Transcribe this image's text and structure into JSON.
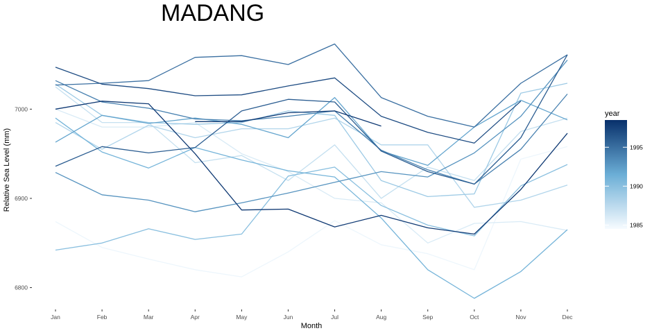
{
  "chart_data": {
    "type": "line",
    "title": "MADANG",
    "xlabel": "Month",
    "ylabel": "Relative Sea Level (mm)",
    "categories": [
      "Jan",
      "Feb",
      "Mar",
      "Apr",
      "May",
      "Jun",
      "Jul",
      "Aug",
      "Sep",
      "Oct",
      "Nov",
      "Dec"
    ],
    "y_ticks": [
      6800,
      6900,
      7000
    ],
    "ylim": [
      6788,
      7085
    ],
    "grid": false,
    "legend": {
      "title": "year",
      "placement": "right",
      "type": "colorbar",
      "min": 1984.5,
      "max": 1998.5,
      "ticks": [
        1985,
        1990,
        1995
      ],
      "color_low": "#f7fbff",
      "color_high": "#08306b"
    },
    "series": [
      {
        "year": 1985,
        "values": [
          6874,
          6845,
          6832,
          6820,
          6812,
          6840,
          6875,
          6848,
          6838,
          6820,
          6944,
          6958
        ]
      },
      {
        "year": 1986,
        "values": [
          7000,
          6980,
          6980,
          6985,
          6950,
          6930,
          6900,
          6895,
          6850,
          6872,
          6874,
          6864
        ]
      },
      {
        "year": 1987,
        "values": [
          7025,
          6985,
          6985,
          6940,
          6948,
          6920,
          6960,
          6900,
          6935,
          6920,
          6975,
          6990
        ]
      },
      {
        "year": 1988,
        "values": [
          6985,
          6955,
          6982,
          6968,
          6978,
          6978,
          6990,
          6960,
          6960,
          6890,
          6898,
          6915
        ]
      },
      {
        "year": 1989,
        "values": [
          7028,
          6993,
          6985,
          6983,
          6985,
          6998,
          6993,
          6920,
          6902,
          6905,
          7018,
          7029
        ]
      },
      {
        "year": 1990,
        "values": [
          6842,
          6850,
          6866,
          6854,
          6860,
          6925,
          6935,
          6892,
          6870,
          6858,
          6914,
          6938
        ]
      },
      {
        "year": 1991,
        "values": [
          6990,
          6952,
          6934,
          6957,
          6943,
          6931,
          6924,
          6878,
          6820,
          6788,
          6818,
          6865
        ]
      },
      {
        "year": 1992,
        "values": [
          6963,
          6993,
          6984,
          6990,
          6983,
          6968,
          7013,
          6953,
          6937,
          6980,
          7010,
          6988
        ]
      },
      {
        "year": 1993,
        "values": [
          6929,
          6904,
          6898,
          6885,
          6895,
          6906,
          6918,
          6930,
          6924,
          6951,
          6992,
          7055
        ]
      },
      {
        "year": 1994,
        "values": [
          7032,
          7008,
          7001,
          6989,
          6987,
          6992,
          6998,
          6954,
          6932,
          6916,
          6955,
          7017
        ]
      },
      {
        "year": 1995,
        "values": [
          7027,
          7029,
          7032,
          7058,
          7060,
          7050,
          7073,
          7013,
          6992,
          6980,
          7029,
          7061
        ]
      },
      {
        "year": 1996,
        "values": [
          6936,
          6958,
          6951,
          6957,
          6998,
          7011,
          7008,
          6953,
          6930,
          6916,
          6968,
          7061
        ]
      },
      {
        "year": 1997,
        "values": [
          7047,
          7028,
          7023,
          7015,
          7016,
          7026,
          7035,
          6992,
          6974,
          6962,
          7009,
          null
        ]
      },
      {
        "year": 1998,
        "values": [
          7000,
          7009,
          7006,
          6950,
          6887,
          6888,
          6868,
          6881,
          6867,
          6860,
          6910,
          6973
        ]
      },
      {
        "year": 1998,
        "values": [
          null,
          null,
          null,
          6986,
          6986,
          6996,
          6998,
          6981,
          null,
          null,
          null,
          null
        ]
      }
    ]
  }
}
